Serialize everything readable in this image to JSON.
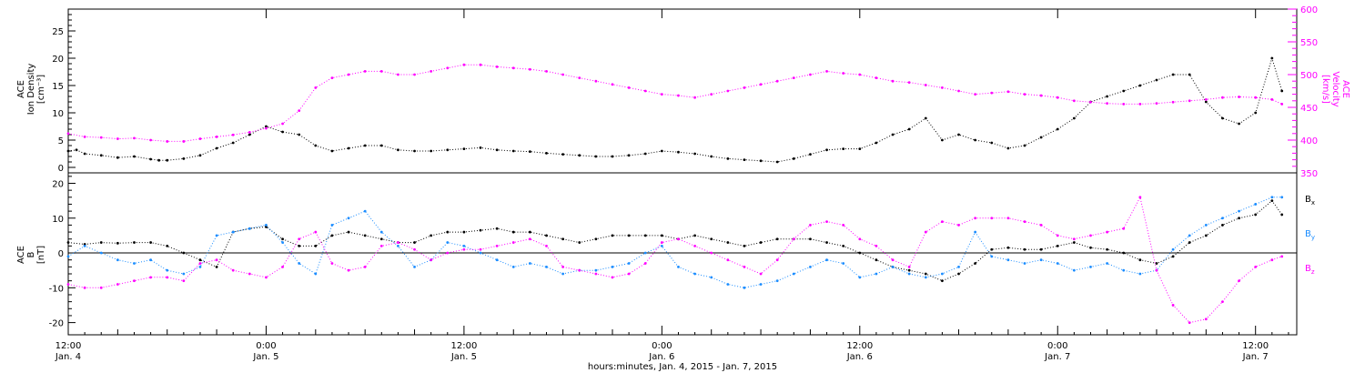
{
  "chart_data": [
    {
      "type": "scatter",
      "panel": "top",
      "left_axis_label": [
        "ACE",
        "Ion Density",
        "[cm⁻³]"
      ],
      "right_axis_label": [
        "ACE",
        "Velocity",
        "[km/s]"
      ],
      "ylim_left": [
        -1,
        29
      ],
      "ylim_right": [
        350,
        600
      ],
      "yticks_left": [
        "0",
        "5",
        "10",
        "15",
        "20",
        "25"
      ],
      "yticks_right": [
        "350",
        "400",
        "450",
        "500",
        "550",
        "600"
      ],
      "series": [
        {
          "color": "#000000",
          "axis": "left",
          "x": [
            0,
            0.5,
            1,
            2,
            3,
            4,
            5,
            5.5,
            6,
            7,
            8,
            9,
            10,
            11,
            12,
            13,
            14,
            15,
            16,
            17,
            18,
            19,
            20,
            21,
            22,
            23,
            24,
            25,
            26,
            27,
            28,
            29,
            30,
            31,
            32,
            33,
            34,
            35,
            36,
            37,
            38,
            39,
            40,
            41,
            42,
            43,
            44,
            45,
            46,
            47,
            48,
            49,
            50,
            51,
            52,
            53,
            54,
            55,
            56,
            57,
            58,
            59,
            60,
            61,
            62,
            63,
            64,
            65,
            66,
            67,
            68,
            69,
            70,
            71,
            72,
            73,
            73.6
          ],
          "y": [
            3,
            3.2,
            2.5,
            2.2,
            1.8,
            2,
            1.5,
            1.3,
            1.3,
            1.6,
            2.2,
            3.5,
            4.5,
            6,
            7.5,
            6.5,
            6,
            4,
            3,
            3.5,
            4,
            4,
            3.2,
            3,
            3,
            3.2,
            3.4,
            3.6,
            3.2,
            3,
            2.9,
            2.6,
            2.4,
            2.2,
            2,
            2,
            2.2,
            2.5,
            3,
            2.8,
            2.5,
            2,
            1.6,
            1.4,
            1.2,
            1,
            1.6,
            2.4,
            3.2,
            3.4,
            3.4,
            4.5,
            6,
            7,
            9,
            5,
            6,
            5,
            4.5,
            3.5,
            4,
            5.5,
            7,
            9,
            12,
            13,
            14,
            15,
            16,
            17,
            17,
            12,
            9,
            8,
            10,
            20,
            14
          ]
        },
        {
          "color": "#ff00ff",
          "axis": "right",
          "x": [
            0,
            1,
            2,
            3,
            4,
            5,
            6,
            7,
            8,
            9,
            10,
            11,
            12,
            13,
            14,
            15,
            16,
            17,
            18,
            19,
            20,
            21,
            22,
            23,
            24,
            25,
            26,
            27,
            28,
            29,
            30,
            31,
            32,
            33,
            34,
            35,
            36,
            37,
            38,
            39,
            40,
            41,
            42,
            43,
            44,
            45,
            46,
            47,
            48,
            49,
            50,
            51,
            52,
            53,
            54,
            55,
            56,
            57,
            58,
            59,
            60,
            61,
            62,
            63,
            64,
            65,
            66,
            67,
            68,
            69,
            70,
            71,
            72,
            73,
            73.6
          ],
          "y": [
            410,
            405,
            404,
            402,
            403,
            400,
            398,
            398,
            402,
            405,
            408,
            412,
            418,
            425,
            445,
            480,
            495,
            500,
            505,
            505,
            500,
            500,
            505,
            510,
            515,
            515,
            512,
            510,
            508,
            505,
            500,
            495,
            490,
            485,
            480,
            475,
            470,
            468,
            465,
            470,
            475,
            480,
            485,
            490,
            495,
            500,
            505,
            502,
            500,
            495,
            490,
            488,
            484,
            480,
            475,
            470,
            472,
            474,
            470,
            468,
            465,
            460,
            458,
            456,
            455,
            455,
            456,
            458,
            460,
            462,
            465,
            466,
            465,
            462,
            455
          ]
        }
      ]
    },
    {
      "type": "scatter",
      "panel": "bottom",
      "left_axis_label": [
        "ACE",
        "B",
        "[nT]"
      ],
      "ylim": [
        -23.5,
        23
      ],
      "yticks": [
        "-20",
        "-10",
        "0",
        "10",
        "20"
      ],
      "xticks": [
        {
          "value": 0,
          "time": "12:00",
          "date": "Jan. 4"
        },
        {
          "value": 12,
          "time": "0:00",
          "date": "Jan. 5"
        },
        {
          "value": 24,
          "time": "12:00",
          "date": "Jan. 5"
        },
        {
          "value": 36,
          "time": "0:00",
          "date": "Jan. 6"
        },
        {
          "value": 48,
          "time": "12:00",
          "date": "Jan. 6"
        },
        {
          "value": 60,
          "time": "0:00",
          "date": "Jan. 7"
        },
        {
          "value": 72,
          "time": "12:00",
          "date": "Jan. 7"
        }
      ],
      "xlim": [
        0,
        74.5
      ],
      "xlabel": "hours:minutes, Jan.  4, 2015 - Jan.  7, 2015",
      "legend": [
        {
          "name": "Bx",
          "base": "B",
          "sub": "x",
          "color": "#000000"
        },
        {
          "name": "By",
          "base": "B",
          "sub": "y",
          "color": "#1a8cff"
        },
        {
          "name": "Bz",
          "base": "B",
          "sub": "z",
          "color": "#ff00ff"
        }
      ],
      "series": [
        {
          "color": "#000000",
          "x": [
            0,
            1,
            2,
            3,
            4,
            5,
            6,
            7,
            8,
            9,
            10,
            11,
            12,
            13,
            14,
            15,
            16,
            17,
            18,
            19,
            20,
            21,
            22,
            23,
            24,
            25,
            26,
            27,
            28,
            29,
            30,
            31,
            32,
            33,
            34,
            35,
            36,
            37,
            38,
            39,
            40,
            41,
            42,
            43,
            44,
            45,
            46,
            47,
            48,
            49,
            50,
            51,
            52,
            53,
            54,
            55,
            56,
            57,
            58,
            59,
            60,
            61,
            62,
            63,
            64,
            65,
            66,
            67,
            68,
            69,
            70,
            71,
            72,
            73,
            73.6
          ],
          "y": [
            3,
            2.5,
            3,
            2.8,
            3,
            3,
            2,
            0,
            -2,
            -4,
            6,
            7,
            7.5,
            4,
            2,
            2,
            5,
            6,
            5,
            4,
            3,
            3,
            5,
            6,
            6,
            6.5,
            7,
            6,
            6,
            5,
            4,
            3,
            4,
            5,
            5,
            5,
            5,
            4,
            5,
            4,
            3,
            2,
            3,
            4,
            4,
            4,
            3,
            2,
            0,
            -2,
            -4,
            -5,
            -6,
            -8,
            -6,
            -3,
            1,
            1.5,
            1,
            1,
            2,
            3,
            1.5,
            1,
            0,
            -2,
            -3,
            -1,
            3,
            5,
            8,
            10,
            11,
            15,
            11
          ]
        },
        {
          "color": "#1a8cff",
          "x": [
            0,
            1,
            2,
            3,
            4,
            5,
            6,
            7,
            8,
            9,
            10,
            11,
            12,
            13,
            14,
            15,
            16,
            17,
            18,
            19,
            20,
            21,
            22,
            23,
            24,
            25,
            26,
            27,
            28,
            29,
            30,
            31,
            32,
            33,
            34,
            35,
            36,
            37,
            38,
            39,
            40,
            41,
            42,
            43,
            44,
            45,
            46,
            47,
            48,
            49,
            50,
            51,
            52,
            53,
            54,
            55,
            56,
            57,
            58,
            59,
            60,
            61,
            62,
            63,
            64,
            65,
            66,
            67,
            68,
            69,
            70,
            71,
            72,
            73,
            73.6
          ],
          "y": [
            -1,
            2,
            0,
            -2,
            -3,
            -2,
            -5,
            -6,
            -4,
            5,
            6,
            7,
            8,
            3,
            -3,
            -6,
            8,
            10,
            12,
            6,
            2,
            -4,
            -2,
            3,
            2,
            0,
            -2,
            -4,
            -3,
            -4,
            -6,
            -5,
            -5,
            -4,
            -3,
            0,
            2,
            -4,
            -6,
            -7,
            -9,
            -10,
            -9,
            -8,
            -6,
            -4,
            -2,
            -3,
            -7,
            -6,
            -4,
            -6,
            -7,
            -6,
            -4,
            6,
            -1,
            -2,
            -3,
            -2,
            -3,
            -5,
            -4,
            -3,
            -5,
            -6,
            -5,
            1,
            5,
            8,
            10,
            12,
            14,
            16,
            16
          ]
        },
        {
          "color": "#ff00ff",
          "x": [
            0,
            1,
            2,
            3,
            4,
            5,
            6,
            7,
            8,
            9,
            10,
            11,
            12,
            13,
            14,
            15,
            16,
            17,
            18,
            19,
            20,
            21,
            22,
            23,
            24,
            25,
            26,
            27,
            28,
            29,
            30,
            31,
            32,
            33,
            34,
            35,
            36,
            37,
            38,
            39,
            40,
            41,
            42,
            43,
            44,
            45,
            46,
            47,
            48,
            49,
            50,
            51,
            52,
            53,
            54,
            55,
            56,
            57,
            58,
            59,
            60,
            61,
            62,
            63,
            64,
            65,
            66,
            67,
            68,
            69,
            70,
            71,
            72,
            73,
            73.6
          ],
          "y": [
            -9,
            -10,
            -10,
            -9,
            -8,
            -7,
            -7,
            -8,
            -3,
            -2,
            -5,
            -6,
            -7,
            -4,
            4,
            6,
            -3,
            -5,
            -4,
            2,
            3,
            1,
            -2,
            0,
            1,
            1,
            2,
            3,
            4,
            2,
            -4,
            -5,
            -6,
            -7,
            -6,
            -3,
            3,
            4,
            2,
            0,
            -2,
            -4,
            -6,
            -2,
            4,
            8,
            9,
            8,
            4,
            2,
            -2,
            -4,
            6,
            9,
            8,
            10,
            10,
            10,
            9,
            8,
            5,
            4,
            5,
            6,
            7,
            16,
            -5,
            -15,
            -20,
            -19,
            -14,
            -8,
            -4,
            -2,
            -1
          ]
        }
      ]
    }
  ]
}
